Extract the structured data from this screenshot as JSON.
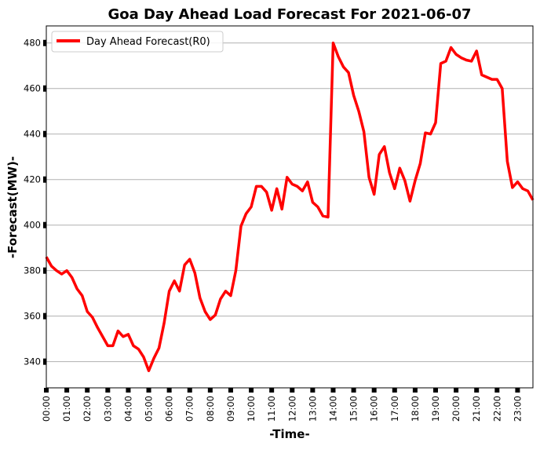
{
  "chart_data": {
    "type": "line",
    "title": "Goa Day Ahead Load Forecast For 2021-06-07",
    "xlabel": "-Time-",
    "ylabel": "-Forecast(MW)-",
    "ylim": [
      328.5,
      487.5
    ],
    "xlim": [
      "00:00",
      "23:45"
    ],
    "y_ticks": [
      340,
      360,
      380,
      400,
      420,
      440,
      460,
      480
    ],
    "x_ticks": [
      "00:00",
      "01:00",
      "02:00",
      "03:00",
      "04:00",
      "05:00",
      "06:00",
      "07:00",
      "08:00",
      "09:00",
      "10:00",
      "11:00",
      "12:00",
      "13:00",
      "14:00",
      "15:00",
      "16:00",
      "17:00",
      "18:00",
      "19:00",
      "20:00",
      "21:00",
      "22:00",
      "23:00"
    ],
    "grid": "horizontal",
    "legend_position": "top-left",
    "series": [
      {
        "name": "Day Ahead Forecast(R0)",
        "color": "#ff0000",
        "interval_minutes": 15,
        "x": [
          "00:00",
          "00:15",
          "00:30",
          "00:45",
          "01:00",
          "01:15",
          "01:30",
          "01:45",
          "02:00",
          "02:15",
          "02:30",
          "02:45",
          "03:00",
          "03:15",
          "03:30",
          "03:45",
          "04:00",
          "04:15",
          "04:30",
          "04:45",
          "05:00",
          "05:15",
          "05:30",
          "05:45",
          "06:00",
          "06:15",
          "06:30",
          "06:45",
          "07:00",
          "07:15",
          "07:30",
          "07:45",
          "08:00",
          "08:15",
          "08:30",
          "08:45",
          "09:00",
          "09:15",
          "09:30",
          "09:45",
          "10:00",
          "10:15",
          "10:30",
          "10:45",
          "11:00",
          "11:15",
          "11:30",
          "11:45",
          "12:00",
          "12:15",
          "12:30",
          "12:45",
          "13:00",
          "13:15",
          "13:30",
          "13:45",
          "14:00",
          "14:15",
          "14:30",
          "14:45",
          "15:00",
          "15:15",
          "15:30",
          "15:45",
          "16:00",
          "16:15",
          "16:30",
          "16:45",
          "17:00",
          "17:15",
          "17:30",
          "17:45",
          "18:00",
          "18:15",
          "18:30",
          "18:45",
          "19:00",
          "19:15",
          "19:30",
          "19:45",
          "20:00",
          "20:15",
          "20:30",
          "20:45",
          "21:00",
          "21:15",
          "21:30",
          "21:45",
          "22:00",
          "22:15",
          "22:30",
          "22:45",
          "23:00",
          "23:15",
          "23:30",
          "23:45"
        ],
        "values": [
          386,
          382,
          380,
          378.5,
          380,
          377,
          372,
          369,
          362,
          359.5,
          355,
          351,
          347,
          347,
          353.5,
          351,
          352,
          347,
          345.5,
          342,
          336,
          341.5,
          346,
          357,
          371,
          375.5,
          371,
          382.5,
          385,
          379,
          368,
          362,
          358.5,
          360.5,
          367.5,
          371,
          369,
          380,
          399.5,
          405,
          408,
          417,
          417,
          414.5,
          406.5,
          416,
          407,
          421,
          418,
          417,
          415,
          419,
          410,
          408,
          404,
          403.5,
          480,
          474,
          469.5,
          467,
          457,
          450,
          441,
          421,
          413.5,
          431,
          434.5,
          423,
          416,
          425,
          419.5,
          410.5,
          419.5,
          427,
          440.5,
          440,
          445,
          471,
          472,
          478,
          475,
          473.5,
          472.5,
          472,
          476.5,
          466,
          465,
          464,
          464,
          460,
          428,
          416.5,
          419,
          416,
          415,
          411
        ]
      }
    ]
  }
}
